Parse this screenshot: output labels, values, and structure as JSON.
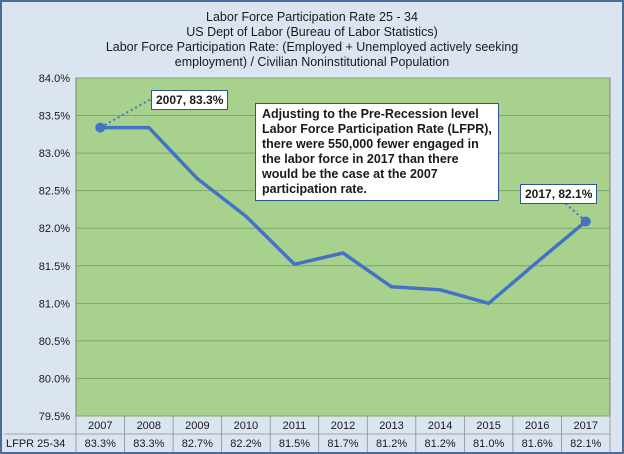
{
  "chart_data": {
    "type": "line",
    "title_lines": [
      "Labor Force Participation Rate 25 - 34",
      "US Dept of Labor (Bureau of Labor Statistics)",
      "Labor Force Participation Rate: (Employed + Unemployed actively seeking",
      "employment) / Civilian Noninstitutional Population"
    ],
    "categories": [
      "2007",
      "2008",
      "2009",
      "2010",
      "2011",
      "2012",
      "2013",
      "2014",
      "2015",
      "2016",
      "2017"
    ],
    "series": [
      {
        "name": "LFPR 25-34",
        "values": [
          83.34,
          83.34,
          82.66,
          82.16,
          81.52,
          81.67,
          81.22,
          81.18,
          81.0,
          81.55,
          82.09
        ],
        "labels": [
          "83.3%",
          "83.3%",
          "82.7%",
          "82.2%",
          "81.5%",
          "81.7%",
          "81.2%",
          "81.2%",
          "81.0%",
          "81.6%",
          "82.1%"
        ],
        "color": "#4472c4"
      }
    ],
    "table_row_label": "LFPR 25-34",
    "yticks": [
      "84.0%",
      "83.5%",
      "83.0%",
      "82.5%",
      "82.0%",
      "81.5%",
      "81.0%",
      "80.5%",
      "80.0%",
      "79.5%"
    ],
    "ylim": [
      79.5,
      84.0
    ],
    "grid": true,
    "plot_background": "#a9d18e",
    "frame_background": "#dbe5f1",
    "annotations": {
      "start_label": "2007, 83.3%",
      "end_label": "2017, 82.1%",
      "note": "Adjusting to the Pre-Recession level Labor Force Participation Rate (LFPR), there were 550,000 fewer engaged in the labor force in 2017 than there would be the case at the 2007 participation rate."
    }
  }
}
